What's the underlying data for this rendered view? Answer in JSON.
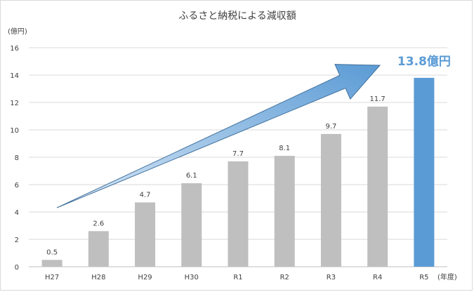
{
  "chart_data": {
    "type": "bar",
    "title": "ふるさと納税による減収額",
    "ylabel": "(億円)",
    "xlabel": "(年度)",
    "ylim": [
      0,
      16
    ],
    "yticks": [
      0,
      2,
      4,
      6,
      8,
      10,
      12,
      14,
      16
    ],
    "grid": true,
    "categories": [
      "H27",
      "H28",
      "H29",
      "H30",
      "R1",
      "R2",
      "R3",
      "R4",
      "R5"
    ],
    "values": [
      0.5,
      2.6,
      4.7,
      6.1,
      7.7,
      8.1,
      9.7,
      11.7,
      13.8
    ],
    "data_labels": [
      "0.5",
      "2.6",
      "4.7",
      "6.1",
      "7.7",
      "8.1",
      "9.7",
      "11.7",
      "13.8億円"
    ],
    "highlight_index": 8,
    "colors": {
      "bar": "#bfbfbf",
      "highlight": "#5b9bd5",
      "grid": "#d9d9d9",
      "arrow_light": "#dbe9f7",
      "arrow_dark": "#5b9bd5"
    },
    "annotation": {
      "type": "trend-arrow"
    }
  }
}
